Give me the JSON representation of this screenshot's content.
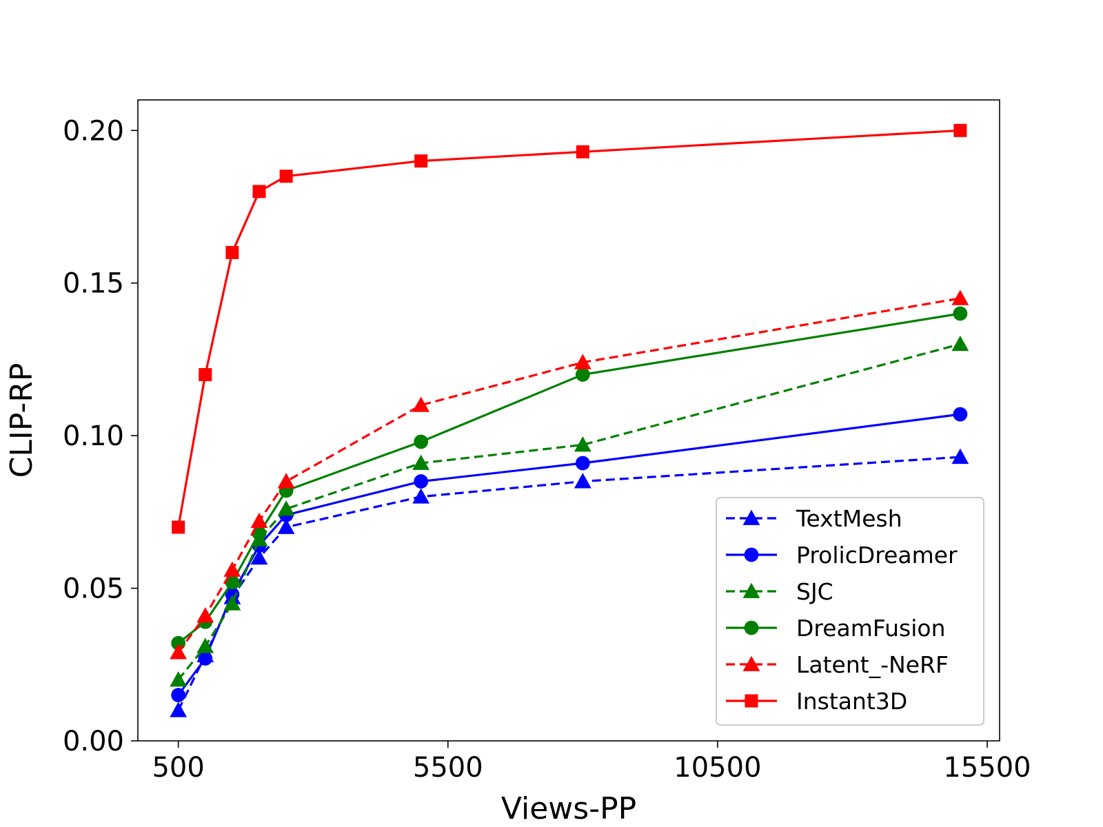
{
  "chart_data": {
    "type": "line",
    "xlabel": "Views-PP",
    "ylabel": "CLIP-RP",
    "xlim": [
      -250,
      15730
    ],
    "ylim": [
      0.0,
      0.21
    ],
    "xticks": [
      500,
      5500,
      10500,
      15500
    ],
    "xtick_labels": [
      "500",
      "5500",
      "10500",
      "15500"
    ],
    "yticks": [
      0.0,
      0.05,
      0.1,
      0.15,
      0.2
    ],
    "ytick_labels": [
      "0.00",
      "0.05",
      "0.10",
      "0.15",
      "0.20"
    ],
    "grid": false,
    "legend_position": "lower-right",
    "x": [
      500,
      1000,
      1500,
      2000,
      2500,
      5000,
      8000,
      15000
    ],
    "series": [
      {
        "name": "TextMesh",
        "color": "#0000ff",
        "dashed": true,
        "marker": "triangle",
        "values": [
          0.01,
          0.028,
          0.047,
          0.06,
          0.07,
          0.08,
          0.085,
          0.093
        ]
      },
      {
        "name": "ProlicDreamer",
        "color": "#0000ff",
        "dashed": false,
        "marker": "circle",
        "values": [
          0.015,
          0.027,
          0.048,
          0.064,
          0.074,
          0.085,
          0.091,
          0.107
        ]
      },
      {
        "name": "SJC",
        "color": "#008000",
        "dashed": true,
        "marker": "triangle",
        "values": [
          0.02,
          0.031,
          0.045,
          0.066,
          0.076,
          0.091,
          0.097,
          0.13
        ]
      },
      {
        "name": "DreamFusion",
        "color": "#008000",
        "dashed": false,
        "marker": "circle",
        "values": [
          0.032,
          0.039,
          0.052,
          0.068,
          0.082,
          0.098,
          0.12,
          0.14
        ]
      },
      {
        "name": "Latent_-NeRF",
        "color": "#ff0000",
        "dashed": true,
        "marker": "triangle",
        "values": [
          0.029,
          0.041,
          0.056,
          0.072,
          0.085,
          0.11,
          0.124,
          0.145
        ]
      },
      {
        "name": "Instant3D",
        "color": "#ff0000",
        "dashed": false,
        "marker": "square",
        "values": [
          0.07,
          0.12,
          0.16,
          0.18,
          0.185,
          0.19,
          0.193,
          0.2
        ]
      }
    ]
  }
}
